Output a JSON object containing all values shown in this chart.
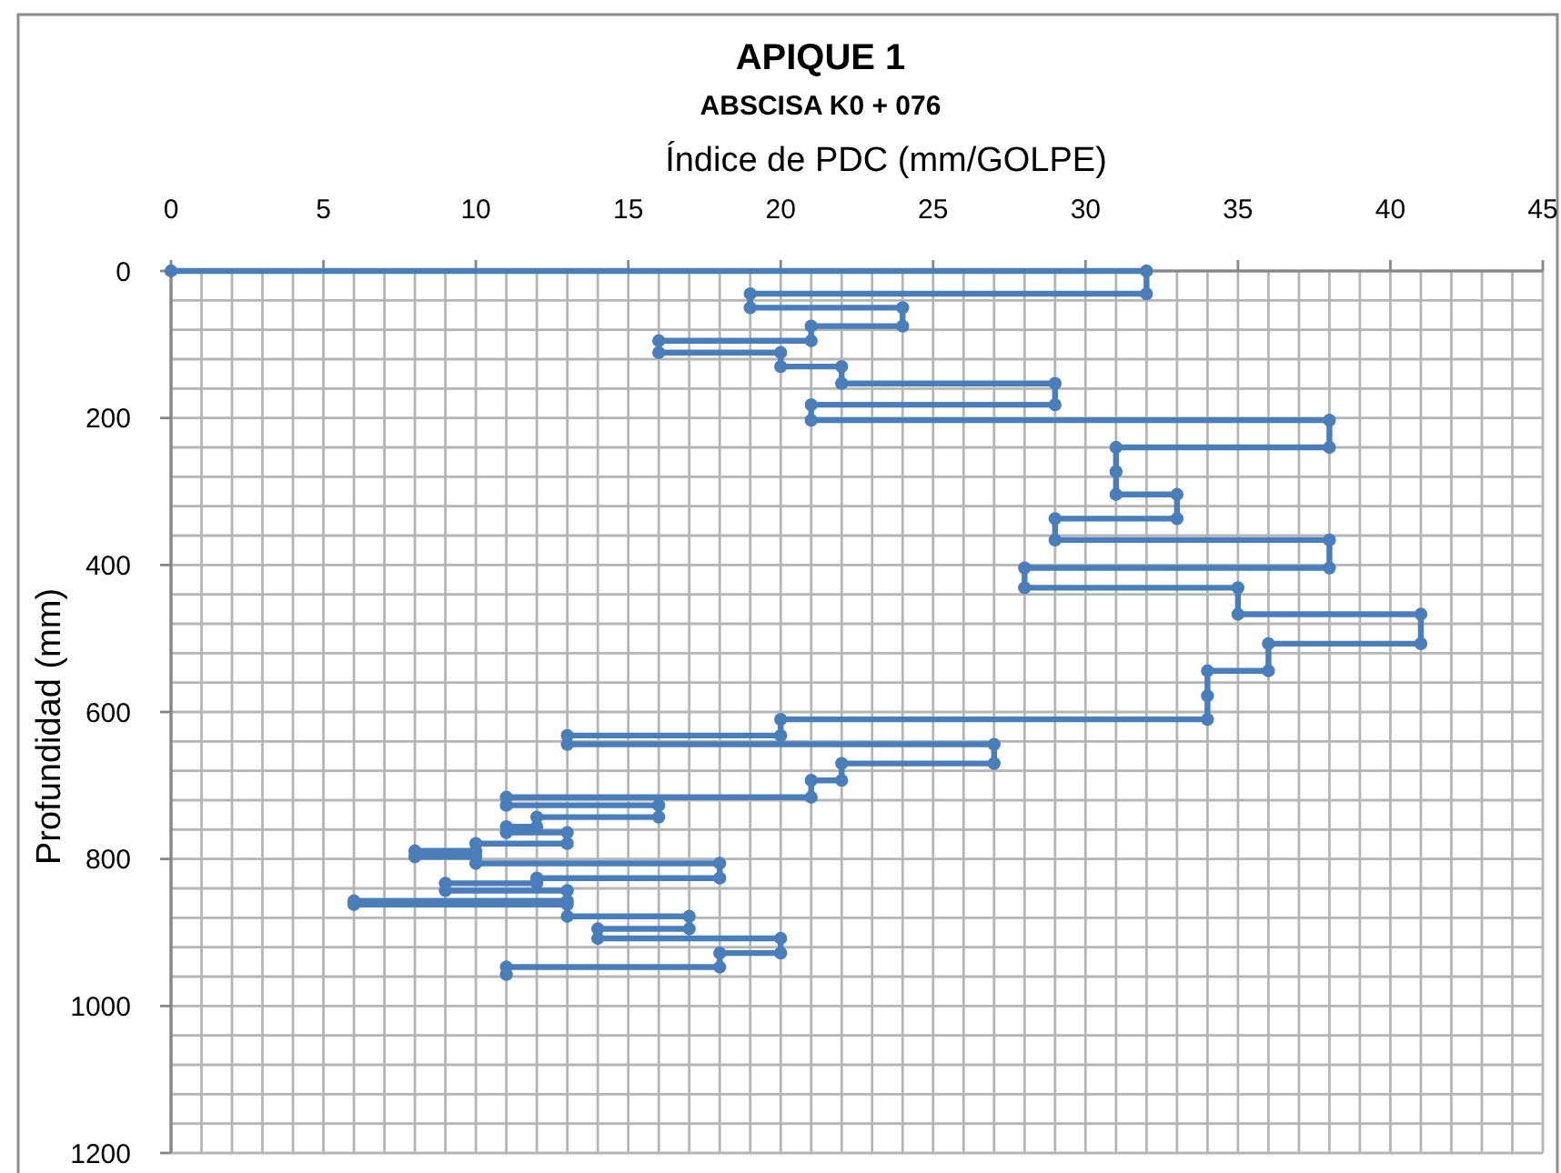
{
  "chart_data": {
    "type": "line",
    "title": "APIQUE 1",
    "subtitle": "ABSCISA K0 + 076",
    "xlabel": "Índice de PDC (mm/GOLPE)",
    "ylabel": "Profundidad (mm)",
    "xlim": [
      0,
      45
    ],
    "xticks": [
      0,
      {
        "value": 1,
        "label": null
      },
      {
        "value": 2,
        "label": null
      },
      {
        "value": 3,
        "label": null
      },
      {
        "value": 4,
        "label": null
      },
      5,
      {
        "value": 6,
        "label": null
      },
      {
        "value": 7,
        "label": null
      },
      {
        "value": 8,
        "label": null
      },
      {
        "value": 9,
        "label": null
      },
      10,
      {
        "value": 11,
        "label": null
      },
      {
        "value": 12,
        "label": null
      },
      {
        "value": 13,
        "label": null
      },
      {
        "value": 14,
        "label": null
      },
      15,
      {
        "value": 16,
        "label": null
      },
      {
        "value": 17,
        "label": null
      },
      {
        "value": 18,
        "label": null
      },
      {
        "value": 19,
        "label": null
      },
      20,
      {
        "value": 21,
        "label": null
      },
      {
        "value": 22,
        "label": null
      },
      {
        "value": 23,
        "label": null
      },
      {
        "value": 24,
        "label": null
      },
      25,
      {
        "value": 26,
        "label": null
      },
      {
        "value": 27,
        "label": null
      },
      {
        "value": 28,
        "label": null
      },
      {
        "value": 29,
        "label": null
      },
      30,
      {
        "value": 31,
        "label": null
      },
      {
        "value": 32,
        "label": null
      },
      {
        "value": 33,
        "label": null
      },
      {
        "value": 34,
        "label": null
      },
      35,
      {
        "value": 36,
        "label": null
      },
      {
        "value": 37,
        "label": null
      },
      {
        "value": 38,
        "label": null
      },
      {
        "value": 39,
        "label": null
      },
      40,
      {
        "value": 41,
        "label": null
      },
      {
        "value": 42,
        "label": null
      },
      {
        "value": 43,
        "label": null
      },
      {
        "value": 44,
        "label": null
      },
      45
    ],
    "ylim": [
      1200,
      0
    ],
    "yticks": [
      0,
      {
        "value": 40,
        "label": null
      },
      {
        "value": 80,
        "label": null
      },
      {
        "value": 120,
        "label": null
      },
      {
        "value": 160,
        "label": null
      },
      200,
      {
        "value": 240,
        "label": null
      },
      {
        "value": 280,
        "label": null
      },
      {
        "value": 320,
        "label": null
      },
      {
        "value": 360,
        "label": null
      },
      400,
      {
        "value": 440,
        "label": null
      },
      {
        "value": 480,
        "label": null
      },
      {
        "value": 520,
        "label": null
      },
      {
        "value": 560,
        "label": null
      },
      600,
      {
        "value": 640,
        "label": null
      },
      {
        "value": 680,
        "label": null
      },
      {
        "value": 720,
        "label": null
      },
      {
        "value": 760,
        "label": null
      },
      800,
      {
        "value": 840,
        "label": null
      },
      {
        "value": 880,
        "label": null
      },
      {
        "value": 920,
        "label": null
      },
      {
        "value": 960,
        "label": null
      },
      1000,
      {
        "value": 1040,
        "label": null
      },
      {
        "value": 1080,
        "label": null
      },
      {
        "value": 1120,
        "label": null
      },
      {
        "value": 1160,
        "label": null
      },
      1200
    ],
    "grid": true,
    "marker": "circle",
    "line_style": "solid",
    "series": [
      {
        "color": "#4a7ebb",
        "x": [
          0,
          32,
          32,
          19,
          19,
          24,
          24,
          21,
          21,
          16,
          16,
          20,
          20,
          22,
          22,
          29,
          29,
          21,
          21,
          38,
          38,
          31,
          31,
          31,
          33,
          33,
          29,
          29,
          38,
          38,
          28,
          28,
          35,
          35,
          41,
          41,
          36,
          36,
          34,
          34,
          34,
          20,
          20,
          13,
          13,
          27,
          27,
          22,
          22,
          21,
          21,
          11,
          11,
          16,
          16,
          12,
          12,
          11,
          11,
          13,
          13,
          10,
          10,
          8,
          8,
          10,
          10,
          18,
          18,
          12,
          12,
          9,
          9,
          13,
          13,
          6,
          6,
          13,
          13,
          17,
          17,
          14,
          14,
          20,
          20,
          18,
          18,
          11,
          11
        ],
        "values": [
          0,
          0,
          31,
          31,
          50,
          50,
          75,
          75,
          95,
          95,
          111,
          111,
          130,
          130,
          153,
          153,
          182,
          182,
          203,
          203,
          240,
          240,
          273,
          304,
          304,
          337,
          337,
          366,
          366,
          404,
          404,
          431,
          431,
          467,
          467,
          507,
          507,
          544,
          544,
          578,
          610,
          610,
          632,
          632,
          644,
          644,
          670,
          670,
          693,
          693,
          716,
          716,
          727,
          727,
          743,
          743,
          756,
          756,
          764,
          764,
          779,
          779,
          789,
          789,
          797,
          797,
          806,
          806,
          826,
          826,
          833,
          833,
          843,
          843,
          857,
          857,
          862,
          862,
          878,
          878,
          895,
          895,
          908,
          908,
          928,
          928,
          947,
          947,
          957
        ]
      }
    ]
  }
}
